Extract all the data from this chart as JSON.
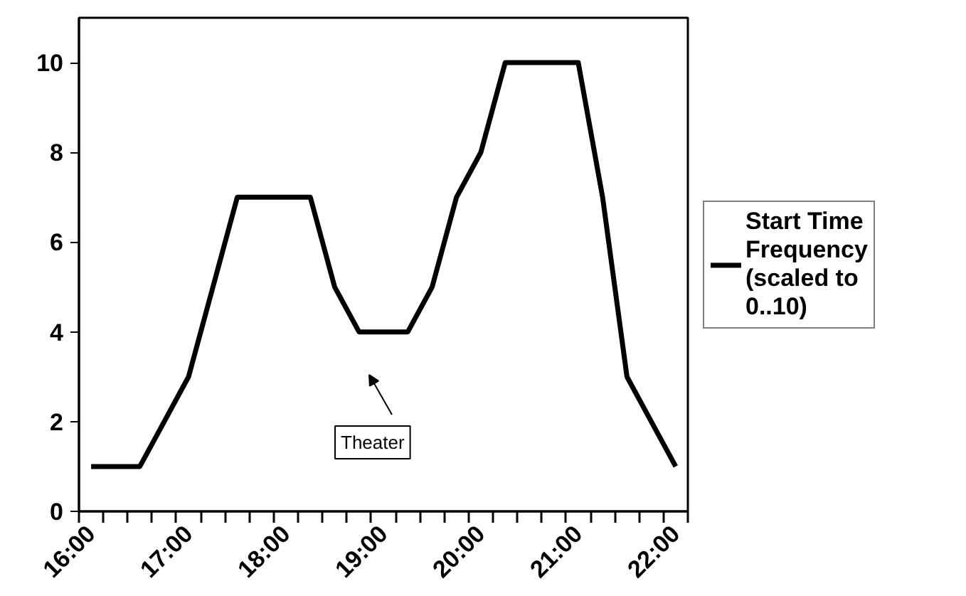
{
  "chart_data": {
    "type": "line",
    "categories": [
      "16:00",
      null,
      null,
      null,
      "17:00",
      null,
      null,
      null,
      "18:00",
      null,
      null,
      null,
      "19:00",
      null,
      null,
      null,
      "20:00",
      null,
      null,
      null,
      "21:00",
      null,
      null,
      null,
      "22:00"
    ],
    "series": [
      {
        "name": "Start Time Frequency (scaled to 0..10)",
        "color": "#000000",
        "values": [
          1,
          1,
          1,
          2,
          3,
          5,
          7,
          7,
          7,
          7,
          5,
          4,
          4,
          4,
          5,
          7,
          8,
          10,
          10,
          10,
          10,
          7,
          3,
          2,
          1
        ]
      }
    ],
    "ylim": [
      0,
      11
    ],
    "yticks": [
      0,
      2,
      4,
      6,
      8,
      10
    ],
    "grid": false,
    "legend": "right",
    "marker": "none",
    "line_style": "solid",
    "annotations": [
      "Theater"
    ]
  }
}
